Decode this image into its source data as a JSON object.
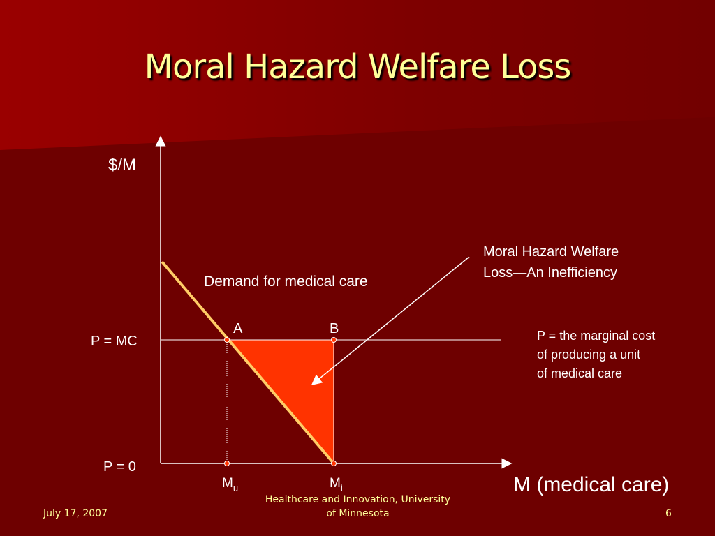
{
  "slide": {
    "title": "Moral Hazard Welfare Loss",
    "colors": {
      "background": "#6e0000",
      "title": "#ffff99",
      "demand_line": "#ffcc66",
      "welfare_loss_area": "#ff3300",
      "points": "#ff3300"
    }
  },
  "diagram": {
    "y_axis_label": "$/M",
    "x_axis_label": "M (medical care)",
    "price_mc_label": "P = MC",
    "price_zero_label": "P = 0",
    "demand_label": "Demand for medical care",
    "point_a_label": "A",
    "point_b_label": "B",
    "mu_label": "M",
    "mu_sub": "u",
    "mi_label": "M",
    "mi_sub": "i",
    "loss_annotation_line1": "Moral Hazard Welfare",
    "loss_annotation_line2": "Loss—An Inefficiency",
    "mc_note_line1": "P = the marginal cost",
    "mc_note_line2": "of producing a unit",
    "mc_note_line3": "of medical care"
  },
  "footer": {
    "date": "July 17, 2007",
    "org_line1": "Healthcare and Innovation, University",
    "org_line2": "of Minnesota",
    "page_number": "6"
  }
}
